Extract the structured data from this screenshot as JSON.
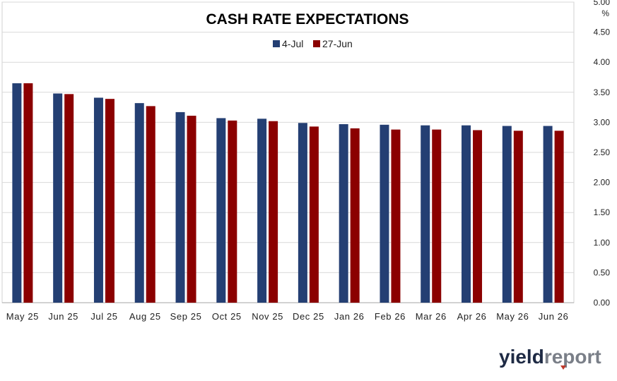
{
  "chart_data": {
    "type": "bar",
    "title": "CASH RATE EXPECTATIONS",
    "ylabel": "%",
    "ylim": [
      0,
      5
    ],
    "y_ticks": [
      "0.00",
      "0.50",
      "1.00",
      "1.50",
      "2.00",
      "2.50",
      "3.00",
      "3.50",
      "4.00",
      "4.50",
      "5.00"
    ],
    "y_axis_side": "right",
    "grid": true,
    "legend_position": "top-center",
    "categories": [
      "May 25",
      "Jun 25",
      "Jul 25",
      "Aug 25",
      "Sep 25",
      "Oct 25",
      "Nov 25",
      "Dec 25",
      "Jan 26",
      "Feb 26",
      "Mar 26",
      "Apr 26",
      "May 26",
      "Jun 26"
    ],
    "series": [
      {
        "name": "4-Jul",
        "color": "#243f73",
        "values": [
          3.65,
          3.48,
          3.41,
          3.32,
          3.17,
          3.07,
          3.06,
          2.99,
          2.97,
          2.96,
          2.95,
          2.95,
          2.94,
          2.94
        ]
      },
      {
        "name": "27-Jun",
        "color": "#8b0000",
        "values": [
          3.65,
          3.47,
          3.39,
          3.27,
          3.11,
          3.03,
          3.02,
          2.93,
          2.9,
          2.88,
          2.88,
          2.87,
          2.86,
          2.86
        ]
      }
    ]
  },
  "branding": {
    "logo_text": "yieldreport",
    "logo_part1": "yield",
    "logo_part2": "report",
    "logo_color1": "#1e2a44",
    "logo_color2": "#7a7f88",
    "logo_accent": "#c0392b"
  }
}
